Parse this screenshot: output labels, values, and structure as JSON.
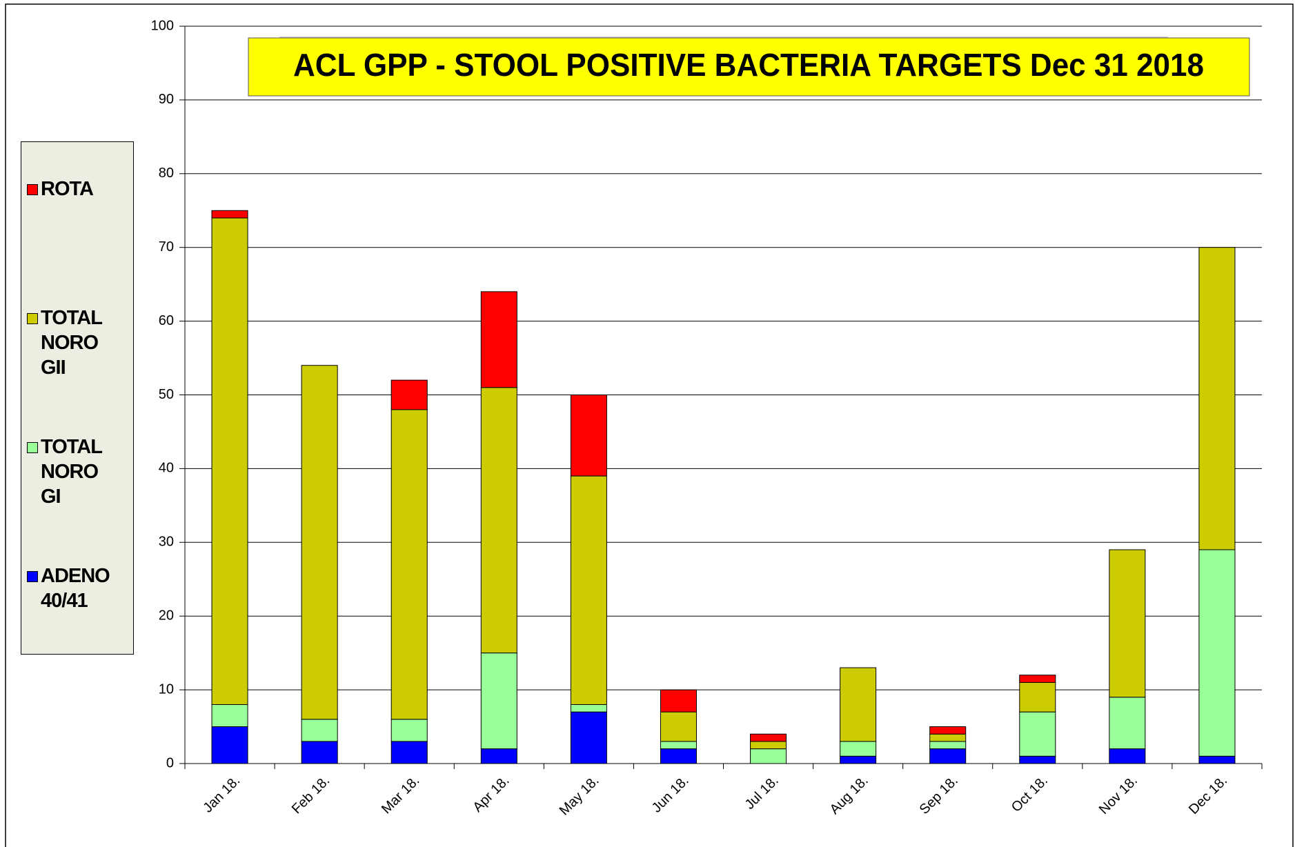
{
  "chart_data": {
    "type": "stacked_bar",
    "title": "ACL GPP - STOOL POSITIVE BACTERIA TARGETS Dec 31 2018",
    "categories": [
      "Jan 18.",
      "Feb 18.",
      "Mar 18.",
      "Apr 18.",
      "May 18.",
      "Jun 18.",
      "Jul 18.",
      "Aug 18.",
      "Sep 18.",
      "Oct 18.",
      "Nov 18.",
      "Dec 18."
    ],
    "series": [
      {
        "name": "ADENO 40/41",
        "color": "#0000ff",
        "values": [
          5,
          3,
          3,
          2,
          7,
          2,
          0,
          1,
          2,
          1,
          2,
          1
        ]
      },
      {
        "name": "TOTAL NORO GI",
        "color": "#99ff99",
        "values": [
          3,
          3,
          3,
          13,
          1,
          1,
          2,
          2,
          1,
          6,
          7,
          28
        ]
      },
      {
        "name": "TOTAL NORO GII",
        "color": "#cccc00",
        "values": [
          66,
          48,
          42,
          36,
          31,
          4,
          1,
          10,
          1,
          4,
          20,
          41
        ]
      },
      {
        "name": "ROTA",
        "color": "#ff0000",
        "values": [
          1,
          0,
          4,
          13,
          11,
          3,
          1,
          0,
          1,
          1,
          0,
          0
        ]
      }
    ],
    "ylim": [
      0,
      100
    ],
    "yticks": [
      0,
      10,
      20,
      30,
      40,
      50,
      60,
      70,
      80,
      90,
      100
    ],
    "grid": true,
    "legend": "left"
  }
}
